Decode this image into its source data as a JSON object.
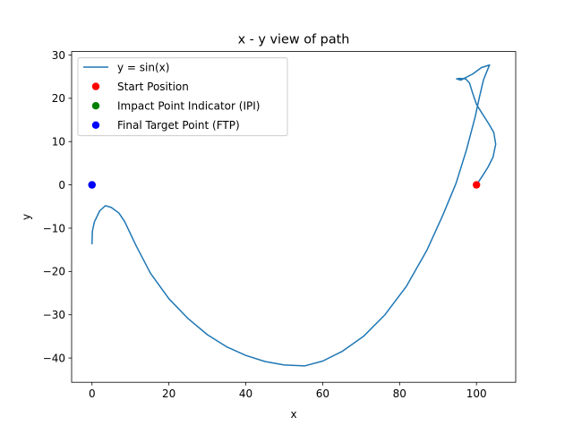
{
  "chart_data": {
    "type": "line",
    "title": "x - y view of path",
    "xlabel": "x",
    "ylabel": "y",
    "xlim": [
      -5.3,
      110.2
    ],
    "ylim": [
      -45.6,
      30.8
    ],
    "xticks": [
      0,
      20,
      40,
      60,
      80,
      100
    ],
    "yticks": [
      -40,
      -30,
      -20,
      -10,
      0,
      10,
      20,
      30
    ],
    "xtick_labels": [
      "0",
      "20",
      "40",
      "60",
      "80",
      "100"
    ],
    "ytick_labels": [
      "−40",
      "−30",
      "−20",
      "−10",
      "0",
      "10",
      "20",
      "30"
    ],
    "grid": false,
    "legend_position": "top-left",
    "series": [
      {
        "name": "y = sin(x)",
        "kind": "line",
        "color": "#1f77b4",
        "points": [
          [
            100.0,
            0.0
          ],
          [
            101.5,
            2.0
          ],
          [
            103.0,
            4.1
          ],
          [
            104.3,
            6.4
          ],
          [
            105.0,
            9.4
          ],
          [
            104.5,
            12.1
          ],
          [
            103.2,
            14.1
          ],
          [
            101.4,
            16.6
          ],
          [
            100.0,
            18.6
          ],
          [
            99.0,
            21.2
          ],
          [
            98.2,
            23.5
          ],
          [
            97.2,
            24.5
          ],
          [
            95.7,
            24.6
          ],
          [
            94.8,
            24.5
          ],
          [
            95.9,
            24.2
          ],
          [
            99.0,
            25.6
          ],
          [
            101.3,
            27.1
          ],
          [
            103.4,
            27.7
          ],
          [
            102.7,
            26.2
          ],
          [
            101.8,
            24.2
          ],
          [
            100.7,
            20.0
          ],
          [
            99.6,
            15.5
          ],
          [
            97.4,
            8.1
          ],
          [
            94.7,
            0.4
          ],
          [
            91.2,
            -7.1
          ],
          [
            87.1,
            -15.1
          ],
          [
            81.8,
            -23.4
          ],
          [
            76.2,
            -30.0
          ],
          [
            70.6,
            -35.0
          ],
          [
            65.0,
            -38.5
          ],
          [
            60.0,
            -40.7
          ],
          [
            55.4,
            -41.8
          ],
          [
            50.0,
            -41.6
          ],
          [
            45.0,
            -40.8
          ],
          [
            40.0,
            -39.4
          ],
          [
            35.0,
            -37.4
          ],
          [
            30.0,
            -34.6
          ],
          [
            25.0,
            -30.9
          ],
          [
            20.0,
            -26.3
          ],
          [
            15.2,
            -20.4
          ],
          [
            11.5,
            -14.1
          ],
          [
            8.5,
            -8.5
          ],
          [
            7.0,
            -6.5
          ],
          [
            5.0,
            -5.2
          ],
          [
            3.5,
            -4.8
          ],
          [
            2.0,
            -6.0
          ],
          [
            0.6,
            -8.6
          ],
          [
            0.1,
            -10.7
          ],
          [
            0.0,
            -13.6
          ]
        ]
      },
      {
        "name": "Start Position",
        "kind": "scatter",
        "color": "#ff0000",
        "points": [
          [
            100.0,
            0.0
          ]
        ]
      },
      {
        "name": "Impact Point Indicator (IPI)",
        "kind": "scatter",
        "color": "#008000",
        "points": [
          [
            0.0,
            0.0
          ]
        ]
      },
      {
        "name": "Final Target Point (FTP)",
        "kind": "scatter",
        "color": "#0000ff",
        "points": [
          [
            0.0,
            0.0
          ]
        ]
      }
    ]
  }
}
